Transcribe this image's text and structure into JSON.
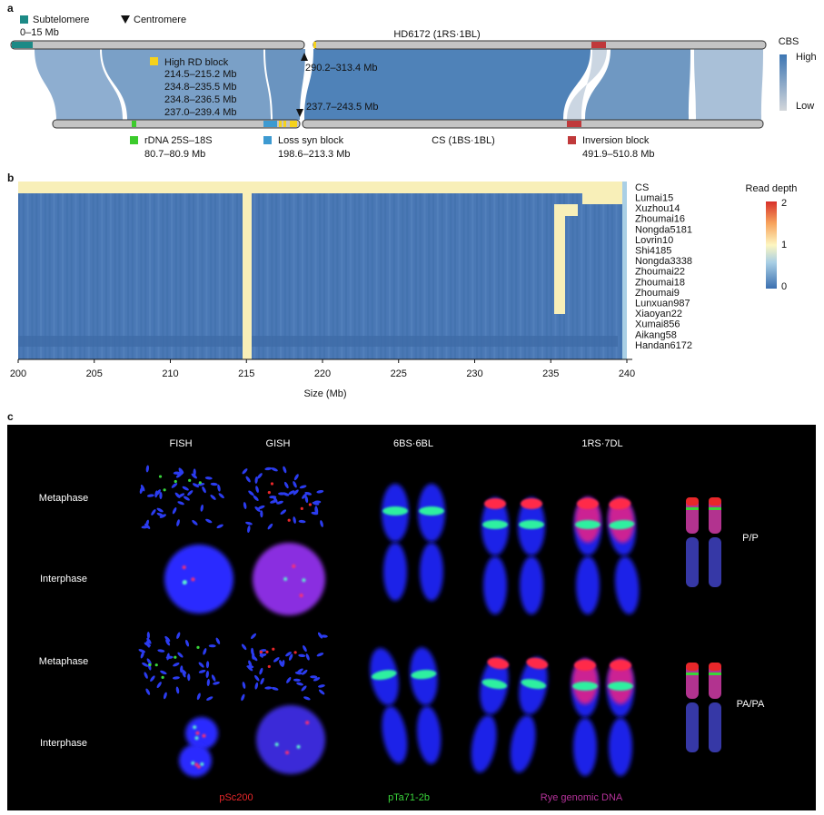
{
  "panel_a": {
    "label": "a",
    "subtelomere": {
      "title": "Subtelomere",
      "range": "0–15 Mb"
    },
    "centromere": "Centromere",
    "top_chromosome": "HD6172 (1RS·1BL)",
    "top_centromere": "290.2–313.4 Mb",
    "high_rd_block": {
      "title": "High RD block",
      "ranges": [
        "214.5–215.2 Mb",
        "234.8–235.5 Mb",
        "234.8–236.5 Mb",
        "237.0–239.4 Mb"
      ]
    },
    "bottom_centromere": "237.7–243.5 Mb",
    "bottom_chromosome": "CS (1BS·1BL)",
    "rdna": {
      "title": "rDNA 25S–18S",
      "range": "80.7–80.9 Mb"
    },
    "loss_syn": {
      "title": "Loss syn block",
      "range": "198.6–213.3 Mb"
    },
    "inversion": {
      "title": "Inversion block",
      "range": "491.9–510.8 Mb"
    },
    "cbs": {
      "title": "CBS",
      "high": "High",
      "low": "Low"
    }
  },
  "panel_b": {
    "label": "b",
    "rows": [
      "CS",
      "Lumai15",
      "Xuzhou14",
      "Zhoumai16",
      "Nongda5181",
      "Lovrin10",
      "Shi4185",
      "Nongda3338",
      "Zhoumai22",
      "Zhoumai18",
      "Zhoumai9",
      "Lunxuan987",
      "Xiaoyan22",
      "Xumai856",
      "Aikang58",
      "Handan6172"
    ],
    "x_ticks": [
      200,
      205,
      210,
      215,
      220,
      225,
      230,
      235,
      240
    ],
    "x_label": "Size (Mb)",
    "colorbar": {
      "title": "Read depth",
      "ticks": [
        2,
        1,
        0
      ]
    }
  },
  "panel_c": {
    "label": "c",
    "columns": [
      "FISH",
      "GISH",
      "6BS·6BL",
      "1RS·7DL"
    ],
    "rows": [
      "Metaphase",
      "Interphase",
      "Metaphase",
      "Interphase"
    ],
    "genotypes": [
      "P/P",
      "PA/PA"
    ],
    "probes": [
      "pSc200",
      "pTa71-2b",
      "Rye genomic DNA"
    ]
  }
}
